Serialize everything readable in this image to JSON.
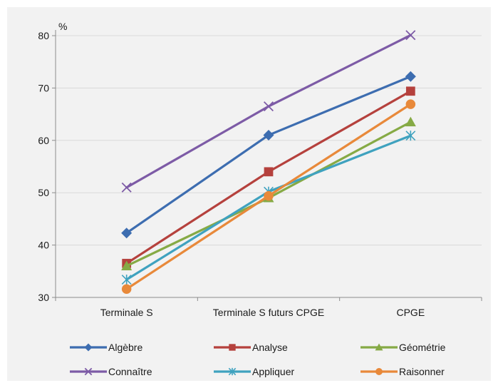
{
  "chart_data": {
    "type": "line",
    "title": "",
    "ylabel": "%",
    "xlabel": "",
    "categories": [
      "Terminale S",
      "Terminale S futurs CPGE",
      "CPGE"
    ],
    "ylim": [
      30,
      80
    ],
    "yticks": [
      30,
      40,
      50,
      60,
      70,
      80
    ],
    "grid": true,
    "legend_position": "bottom",
    "series": [
      {
        "name": "Algèbre",
        "values": [
          42.3,
          61.0,
          72.2
        ],
        "color": "#3d6db0",
        "marker": "diamond"
      },
      {
        "name": "Analyse",
        "values": [
          36.5,
          54.0,
          69.4
        ],
        "color": "#b5413d",
        "marker": "square"
      },
      {
        "name": "Géométrie",
        "values": [
          36.0,
          49.0,
          63.5
        ],
        "color": "#86aa45",
        "marker": "triangle"
      },
      {
        "name": "Connaître",
        "values": [
          51.0,
          66.5,
          80.1
        ],
        "color": "#7d5ba6",
        "marker": "x"
      },
      {
        "name": "Appliquer",
        "values": [
          33.4,
          50.2,
          60.9
        ],
        "color": "#3fa2bf",
        "marker": "star"
      },
      {
        "name": "Raisonner",
        "values": [
          31.6,
          49.4,
          66.9
        ],
        "color": "#e8893a",
        "marker": "circle"
      }
    ]
  }
}
